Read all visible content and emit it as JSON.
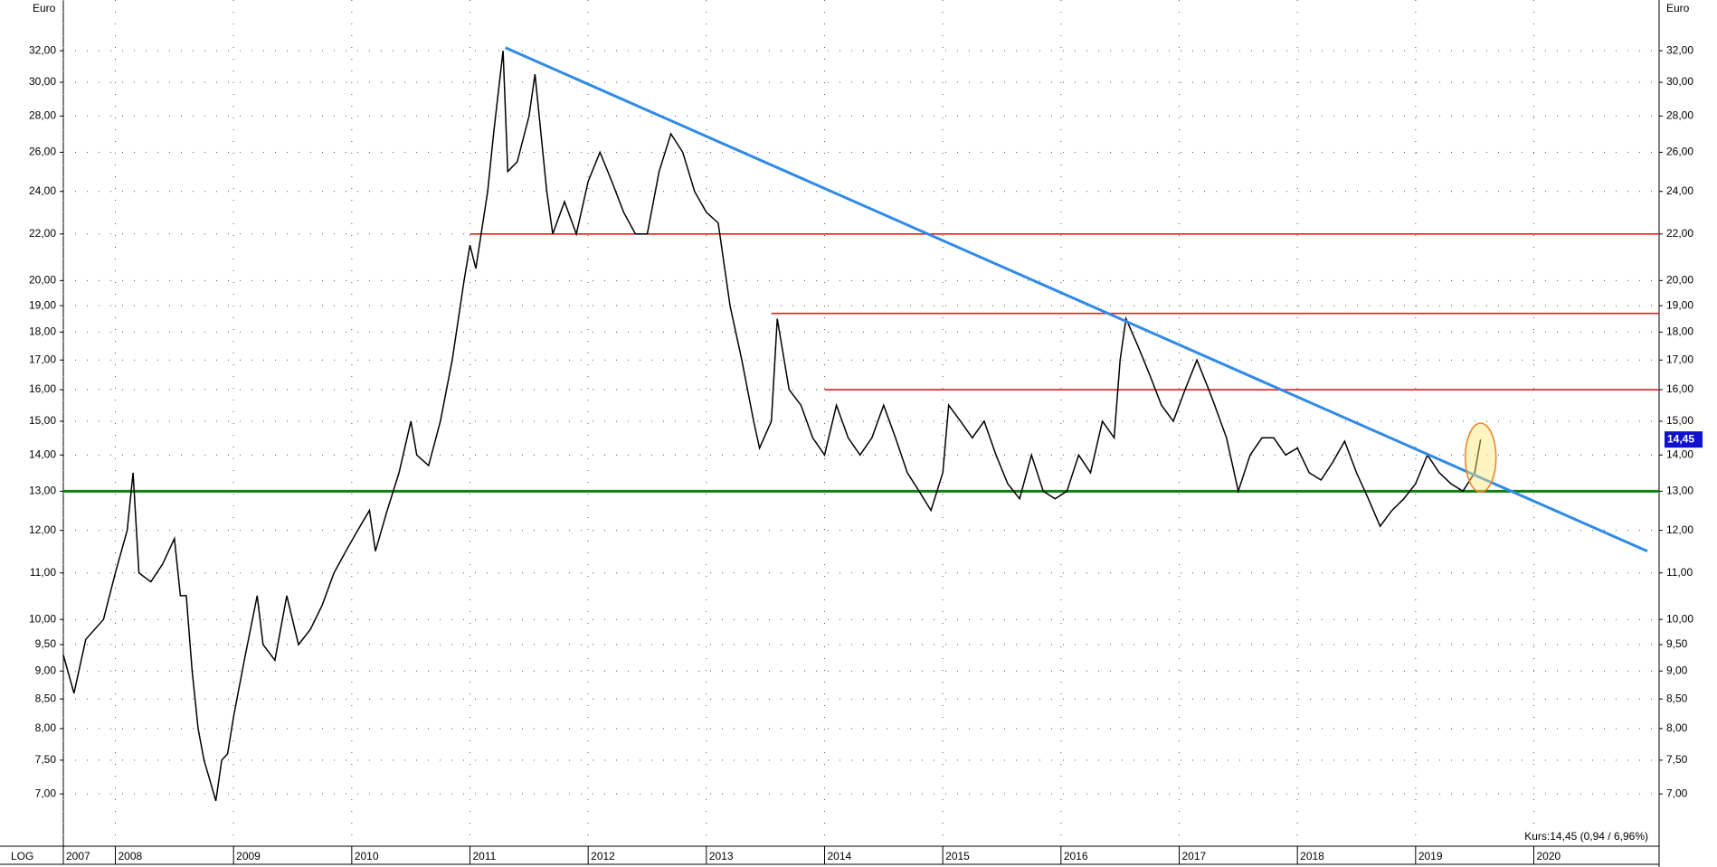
{
  "chart_data": {
    "type": "line",
    "y_label": "Euro",
    "y2_label": "Euro",
    "scale_label": "LOG",
    "log_scale": true,
    "grid": true,
    "color": "#000000",
    "x": [
      2007.56,
      2007.65,
      2007.75,
      2007.9,
      2008.0,
      2008.1,
      2008.15,
      2008.2,
      2008.3,
      2008.4,
      2008.5,
      2008.55,
      2008.6,
      2008.65,
      2008.7,
      2008.75,
      2008.8,
      2008.85,
      2008.9,
      2008.95,
      2009.0,
      2009.1,
      2009.2,
      2009.25,
      2009.35,
      2009.45,
      2009.55,
      2009.65,
      2009.75,
      2009.85,
      2009.95,
      2010.05,
      2010.15,
      2010.2,
      2010.3,
      2010.4,
      2010.5,
      2010.55,
      2010.65,
      2010.75,
      2010.85,
      2010.95,
      2011.0,
      2011.05,
      2011.15,
      2011.2,
      2011.28,
      2011.32,
      2011.4,
      2011.5,
      2011.55,
      2011.65,
      2011.7,
      2011.8,
      2011.9,
      2012.0,
      2012.1,
      2012.2,
      2012.3,
      2012.4,
      2012.5,
      2012.6,
      2012.7,
      2012.8,
      2012.9,
      2013.0,
      2013.1,
      2013.2,
      2013.3,
      2013.4,
      2013.45,
      2013.55,
      2013.6,
      2013.7,
      2013.8,
      2013.9,
      2014.0,
      2014.1,
      2014.2,
      2014.3,
      2014.4,
      2014.5,
      2014.6,
      2014.7,
      2014.8,
      2014.9,
      2015.0,
      2015.05,
      2015.15,
      2015.25,
      2015.35,
      2015.45,
      2015.55,
      2015.65,
      2015.75,
      2015.85,
      2015.95,
      2016.05,
      2016.15,
      2016.25,
      2016.35,
      2016.45,
      2016.5,
      2016.55,
      2016.65,
      2016.75,
      2016.85,
      2016.95,
      2017.05,
      2017.15,
      2017.25,
      2017.3,
      2017.4,
      2017.5,
      2017.6,
      2017.7,
      2017.8,
      2017.9,
      2018.0,
      2018.1,
      2018.2,
      2018.3,
      2018.4,
      2018.5,
      2018.6,
      2018.7,
      2018.8,
      2018.9,
      2019.0,
      2019.1,
      2019.2,
      2019.3,
      2019.4,
      2019.5,
      2019.55
    ],
    "values": [
      9.3,
      8.6,
      9.6,
      10.0,
      11.0,
      12.0,
      13.5,
      11.0,
      10.8,
      11.2,
      11.8,
      10.5,
      10.5,
      9.0,
      8.0,
      7.5,
      7.2,
      6.9,
      7.5,
      7.6,
      8.2,
      9.3,
      10.5,
      9.5,
      9.2,
      10.5,
      9.5,
      9.8,
      10.3,
      11.0,
      11.5,
      12.0,
      12.5,
      11.5,
      12.5,
      13.5,
      15.0,
      14.0,
      13.7,
      15.0,
      17.0,
      20.0,
      21.5,
      20.5,
      24.0,
      27.0,
      32.0,
      25.0,
      25.5,
      28.0,
      30.5,
      24.0,
      22.0,
      23.5,
      22.0,
      24.5,
      26.0,
      24.5,
      23.0,
      22.0,
      22.0,
      25.0,
      27.0,
      26.0,
      24.0,
      23.0,
      22.5,
      19.0,
      17.0,
      15.0,
      14.2,
      15.0,
      18.5,
      16.0,
      15.5,
      14.5,
      14.0,
      15.5,
      14.5,
      14.0,
      14.5,
      15.5,
      14.5,
      13.5,
      13.0,
      12.5,
      13.5,
      15.5,
      15.0,
      14.5,
      15.0,
      14.0,
      13.2,
      12.8,
      14.0,
      13.0,
      12.8,
      13.0,
      14.0,
      13.5,
      15.0,
      14.5,
      17.0,
      18.5,
      17.5,
      16.5,
      15.5,
      15.0,
      16.0,
      17.0,
      16.0,
      15.5,
      14.5,
      13.0,
      14.0,
      14.5,
      14.5,
      14.0,
      14.2,
      13.5,
      13.3,
      13.8,
      14.4,
      13.5,
      12.8,
      12.1,
      12.5,
      12.8,
      13.2,
      14.0,
      13.5,
      13.2,
      13.0,
      13.5,
      14.45
    ],
    "last_value_label": "14,45",
    "annotation": "Kurs:14,45 (0,94 / 6,96%)",
    "trendline": {
      "x": [
        2011.3,
        2020.96
      ],
      "values": [
        32.2,
        11.5
      ],
      "color": "#2f8be6"
    },
    "levels": [
      {
        "value": 22.0,
        "from": 2011.0,
        "color": "#e02020"
      },
      {
        "value": 18.7,
        "from": 2013.55,
        "color": "#e02020"
      },
      {
        "value": 16.0,
        "from": 2014.0,
        "color": "#e02020"
      },
      {
        "value": 13.0,
        "from": 2007.56,
        "color": "#108010"
      }
    ],
    "xlim": [
      2007.56,
      2021.06
    ],
    "xticks": [
      {
        "value": 2007.56,
        "label": "2007"
      },
      2008,
      2009,
      2010,
      2011,
      2012,
      2013,
      2014,
      2015,
      2016,
      2017,
      2018,
      2019,
      2020
    ],
    "ylim": [
      6.29,
      35.5
    ],
    "yticks": [
      {
        "value": 7,
        "label": "7,00"
      },
      {
        "value": 7.5,
        "label": "7,50"
      },
      {
        "value": 8,
        "label": "8,00"
      },
      {
        "value": 8.5,
        "label": "8,50"
      },
      {
        "value": 9,
        "label": "9,00"
      },
      {
        "value": 9.5,
        "label": "9,50"
      },
      {
        "value": 10,
        "label": "10,00"
      },
      {
        "value": 11,
        "label": "11,00"
      },
      {
        "value": 12,
        "label": "12,00"
      },
      {
        "value": 13,
        "label": "13,00"
      },
      {
        "value": 14,
        "label": "14,00"
      },
      {
        "value": 15,
        "label": "15,00"
      },
      {
        "value": 16,
        "label": "16,00"
      },
      {
        "value": 17,
        "label": "17,00"
      },
      {
        "value": 18,
        "label": "18,00"
      },
      {
        "value": 19,
        "label": "19,00"
      },
      {
        "value": 20,
        "label": "20,00"
      },
      {
        "value": 22,
        "label": "22,00"
      },
      {
        "value": 24,
        "label": "24,00"
      },
      {
        "value": 26,
        "label": "26,00"
      },
      {
        "value": 28,
        "label": "28,00"
      },
      {
        "value": 30,
        "label": "30,00"
      },
      {
        "value": 32,
        "label": "32,00"
      }
    ]
  }
}
